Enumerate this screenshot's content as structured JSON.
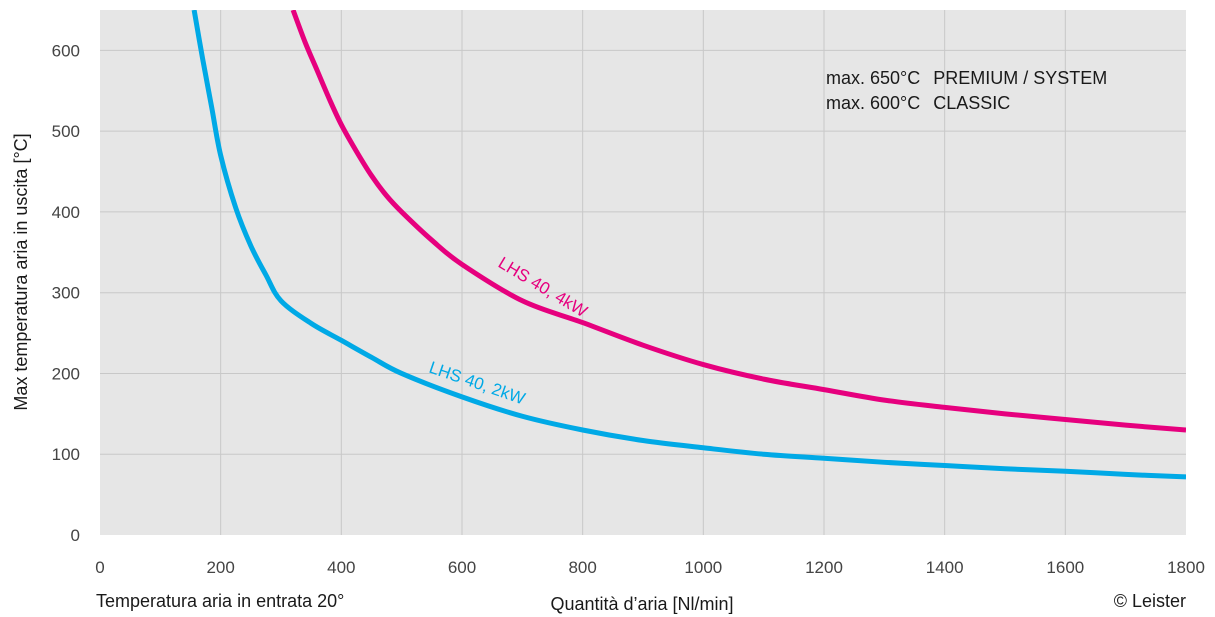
{
  "chart_data": {
    "type": "line",
    "title": "",
    "xlabel": "Quantità d’aria [Nl/min]",
    "ylabel": "Max temperatura aria in uscita [°C]",
    "xlim": [
      0,
      1800
    ],
    "ylim": [
      0,
      650
    ],
    "xticks": [
      "0",
      "200",
      "400",
      "600",
      "800",
      "1000",
      "1200",
      "1400",
      "1600",
      "1800"
    ],
    "yticks": [
      "0",
      "100",
      "200",
      "300",
      "400",
      "500",
      "600"
    ],
    "grid": true,
    "series": [
      {
        "name": "LHS 40, 2kW",
        "color": "#00a9e6",
        "x": [
          156,
          170,
          185,
          200,
          225,
          250,
          275,
          300,
          350,
          400,
          450,
          500,
          600,
          700,
          800,
          900,
          1000,
          1100,
          1200,
          1300,
          1400,
          1500,
          1600,
          1700,
          1800
        ],
        "y": [
          650,
          590,
          530,
          470,
          405,
          358,
          322,
          290,
          262,
          241,
          220,
          200,
          171,
          147,
          130,
          117,
          108,
          100,
          95,
          90,
          86,
          82,
          79,
          75,
          72
        ]
      },
      {
        "name": "LHS 40, 4kW",
        "color": "#e6007e",
        "x": [
          320,
          340,
          360,
          380,
          400,
          425,
          450,
          475,
          500,
          550,
          600,
          700,
          800,
          900,
          1000,
          1100,
          1200,
          1300,
          1400,
          1500,
          1600,
          1700,
          1800
        ],
        "y": [
          650,
          610,
          575,
          540,
          508,
          475,
          445,
          420,
          400,
          365,
          335,
          290,
          263,
          235,
          211,
          193,
          180,
          167,
          158,
          150,
          143,
          136,
          130
        ]
      }
    ],
    "annotations": {
      "line1_prefix": "max. 650°C",
      "line1_suffix": "PREMIUM / SYSTEM",
      "line2_prefix": "max. 600°C",
      "line2_suffix": "CLASSIC",
      "inlet_note": "Temperatura aria in entrata 20°",
      "copyright": "© Leister"
    }
  }
}
